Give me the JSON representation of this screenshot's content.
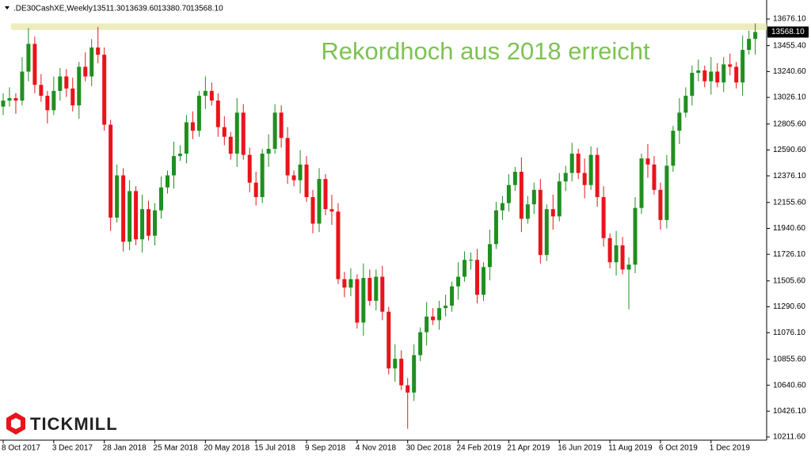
{
  "chart_data": {
    "type": "candlestick",
    "header": {
      "symbol": ".DE30CashXE,Weekly",
      "ohlc": [
        "13511.30",
        "13639.60",
        "13380.70",
        "13568.10"
      ]
    },
    "annotation": "Rekordhoch aus 2018 erreicht",
    "logo": "TICKMILL",
    "price_label": "13568.10",
    "band": [
      13585,
      13640
    ],
    "band_color": "#e6e6a8",
    "up_color": "#1f8f1f",
    "down_color": "#e8141b",
    "categories": [
      "8 Oct 2017",
      null,
      null,
      null,
      null,
      null,
      null,
      null,
      "3 Dec 2017",
      null,
      null,
      null,
      null,
      null,
      null,
      null,
      "28 Jan 2018",
      null,
      null,
      null,
      null,
      null,
      null,
      null,
      "25 Mar 2018",
      null,
      null,
      null,
      null,
      null,
      null,
      null,
      "20 May 2018",
      null,
      null,
      null,
      null,
      null,
      null,
      null,
      "15 Jul 2018",
      null,
      null,
      null,
      null,
      null,
      null,
      null,
      "9 Sep 2018",
      null,
      null,
      null,
      null,
      null,
      null,
      null,
      "4 Nov 2018",
      null,
      null,
      null,
      null,
      null,
      null,
      null,
      "30 Dec 2018",
      null,
      null,
      null,
      null,
      null,
      null,
      null,
      "24 Feb 2019",
      null,
      null,
      null,
      null,
      null,
      null,
      null,
      "21 Apr 2019",
      null,
      null,
      null,
      null,
      null,
      null,
      null,
      "16 Jun 2019",
      null,
      null,
      null,
      null,
      null,
      null,
      null,
      "11 Aug 2019",
      null,
      null,
      null,
      null,
      null,
      null,
      null,
      "6 Oct 2019",
      null,
      null,
      null,
      null,
      null,
      null,
      null,
      "1 Dec 2019",
      null,
      null,
      null,
      null,
      null,
      null,
      null
    ],
    "open": [
      12950,
      13000,
      13020,
      13000,
      13240,
      13470,
      13130,
      13040,
      12920,
      13080,
      13200,
      13100,
      12960,
      13280,
      13200,
      13440,
      13380,
      12800,
      12030,
      12380,
      11830,
      12250,
      11850,
      12100,
      11880,
      12090,
      12280,
      12380,
      12540,
      12560,
      12820,
      12750,
      13040,
      13080,
      13000,
      12780,
      12700,
      12560,
      12900,
      12550,
      12320,
      12200,
      12560,
      12600,
      12900,
      12690,
      12380,
      12340,
      12470,
      12200,
      11980,
      12350,
      12100,
      12080,
      11520,
      11450,
      11520,
      11160,
      11530,
      11340,
      11540,
      11250,
      10780,
      10860,
      10640,
      10580,
      10890,
      11080,
      11210,
      11180,
      11280,
      11300,
      11460,
      11540,
      11680,
      11680,
      11390,
      11620,
      11810,
      12090,
      12150,
      12300,
      12410,
      12020,
      12140,
      12260,
      11720,
      12100,
      12040,
      12330,
      12400,
      12560,
      12400,
      12300,
      12550,
      12200,
      11860,
      11660,
      11800,
      11600,
      11640,
      12110,
      12520,
      12470,
      12260,
      12010,
      12460,
      12750,
      12900,
      13040,
      13230,
      13250,
      13160,
      13240,
      13150,
      13300,
      13280,
      13150,
      13420,
      13511.3
    ],
    "high": [
      13060,
      13110,
      13060,
      13360,
      13600,
      13530,
      13220,
      13080,
      13200,
      13270,
      13260,
      13190,
      13320,
      13400,
      13510,
      13610,
      13440,
      12840,
      12470,
      12440,
      12340,
      12290,
      12220,
      12170,
      12150,
      12370,
      12420,
      12660,
      12630,
      12880,
      12910,
      13080,
      13200,
      13150,
      13060,
      12870,
      12740,
      13020,
      12970,
      12610,
      12410,
      12600,
      12720,
      12970,
      12960,
      12780,
      12420,
      12590,
      12540,
      12260,
      12440,
      12390,
      12220,
      12150,
      11580,
      11610,
      11560,
      11650,
      11600,
      11600,
      11630,
      11290,
      10980,
      10930,
      10700,
      10980,
      11120,
      11330,
      11280,
      11340,
      11390,
      11500,
      11660,
      11750,
      11740,
      11770,
      11660,
      11930,
      12160,
      12210,
      12390,
      12450,
      12530,
      12210,
      12320,
      12350,
      12140,
      12220,
      12400,
      12460,
      12650,
      12600,
      12520,
      12620,
      12610,
      12290,
      11900,
      11920,
      11870,
      11700,
      12200,
      12560,
      12640,
      12540,
      12320,
      12550,
      12790,
      13020,
      13110,
      13290,
      13340,
      13290,
      13360,
      13310,
      13360,
      13390,
      13320,
      13540,
      13580,
      13639.6
    ],
    "low": [
      12880,
      12950,
      12890,
      12960,
      13160,
      13060,
      12990,
      12810,
      12880,
      13000,
      13030,
      12910,
      12850,
      13160,
      13120,
      13310,
      12750,
      11920,
      11990,
      11750,
      11760,
      11800,
      11740,
      11840,
      11800,
      12020,
      12230,
      12270,
      12500,
      12480,
      12680,
      12700,
      12930,
      12960,
      12700,
      12630,
      12510,
      12450,
      12510,
      12240,
      12130,
      12150,
      12450,
      12560,
      12610,
      12310,
      12290,
      12230,
      12160,
      11900,
      11910,
      12050,
      11970,
      11480,
      11370,
      11380,
      11110,
      11050,
      11300,
      11260,
      11180,
      10730,
      10670,
      10600,
      10280,
      10510,
      10840,
      10970,
      11140,
      11100,
      11210,
      11250,
      11350,
      11500,
      11600,
      11320,
      11340,
      11510,
      11770,
      12010,
      12080,
      12250,
      11910,
      11980,
      12060,
      11650,
      11670,
      11930,
      12000,
      12250,
      12330,
      12350,
      12190,
      12260,
      12120,
      11790,
      11610,
      11550,
      11560,
      11270,
      11570,
      12060,
      12360,
      12220,
      11930,
      11940,
      12410,
      12640,
      12860,
      12960,
      13160,
      13110,
      13050,
      13110,
      13070,
      13210,
      13100,
      13040,
      13380,
      13380.7
    ],
    "close": [
      13000,
      13020,
      13000,
      13240,
      13470,
      13130,
      13040,
      12920,
      13080,
      13200,
      13100,
      12960,
      13280,
      13200,
      13440,
      13380,
      12800,
      12030,
      12380,
      11830,
      12250,
      11850,
      12100,
      11880,
      12090,
      12280,
      12380,
      12540,
      12560,
      12820,
      12750,
      13040,
      13080,
      13000,
      12780,
      12700,
      12560,
      12900,
      12550,
      12320,
      12200,
      12560,
      12600,
      12900,
      12690,
      12380,
      12340,
      12470,
      12200,
      11980,
      12350,
      12100,
      12080,
      11520,
      11450,
      11520,
      11160,
      11530,
      11340,
      11540,
      11250,
      10780,
      10860,
      10640,
      10580,
      10890,
      11080,
      11210,
      11180,
      11280,
      11300,
      11460,
      11540,
      11680,
      11680,
      11390,
      11620,
      11810,
      12090,
      12150,
      12300,
      12410,
      12020,
      12140,
      12260,
      11720,
      12100,
      12040,
      12330,
      12400,
      12560,
      12400,
      12300,
      12550,
      12200,
      11860,
      11660,
      11800,
      11600,
      11640,
      12110,
      12520,
      12470,
      12260,
      12010,
      12460,
      12750,
      12900,
      13040,
      13230,
      13250,
      13160,
      13240,
      13150,
      13300,
      13280,
      13150,
      13420,
      13511.3,
      13568.1
    ],
    "ylim": [
      10185.3,
      13728.6
    ],
    "yticks": [
      {
        "value": 13676.1,
        "label": "13676.10"
      },
      {
        "value": 13455.4,
        "label": "13455.40"
      },
      {
        "value": 13240.6,
        "label": "13240.60"
      },
      {
        "value": 13026.1,
        "label": "13026.10"
      },
      {
        "value": 12805.6,
        "label": "12805.60"
      },
      {
        "value": 12590.6,
        "label": "12590.60"
      },
      {
        "value": 12376.1,
        "label": "12376.10"
      },
      {
        "value": 12155.6,
        "label": "12155.60"
      },
      {
        "value": 11940.6,
        "label": "11940.60"
      },
      {
        "value": 11726.1,
        "label": "11726.10"
      },
      {
        "value": 11505.6,
        "label": "11505.60"
      },
      {
        "value": 11290.6,
        "label": "11290.60"
      },
      {
        "value": 11076.1,
        "label": "11076.10"
      },
      {
        "value": 10855.6,
        "label": "10855.60"
      },
      {
        "value": 10640.6,
        "label": "10640.60"
      },
      {
        "value": 10426.1,
        "label": "10426.10"
      },
      {
        "value": 10211.6,
        "label": "10211.60"
      }
    ]
  }
}
